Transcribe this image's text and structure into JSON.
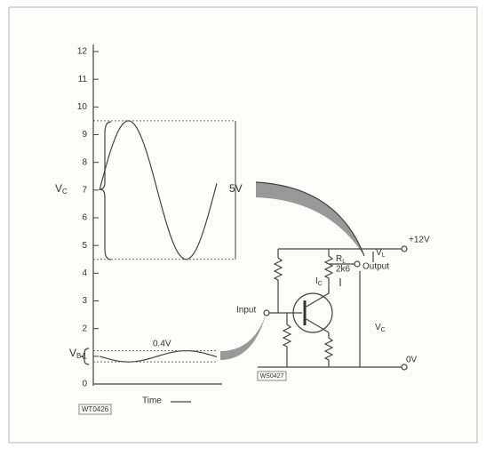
{
  "graph": {
    "ylim": [
      0,
      12
    ],
    "yticks": [
      0,
      1,
      2,
      3,
      4,
      5,
      6,
      7,
      8,
      9,
      10,
      11,
      12
    ],
    "vc_range": [
      4.5,
      9.5
    ],
    "vb_range": [
      0.8,
      1.2
    ],
    "vc_label": {
      "text": "V",
      "sub": "C"
    },
    "vb_label": {
      "text": "V",
      "sub": "B"
    },
    "swing_label": "5V",
    "vb_swing_label": "0.4V",
    "x_label": "Time",
    "figure_id": "WT0426"
  },
  "circuit": {
    "supply": "+12V",
    "ground": "0V",
    "rl": {
      "text": "R",
      "sub": "L"
    },
    "rl_value": "2k6",
    "ic": {
      "text": "I",
      "sub": "C"
    },
    "vl": {
      "text": "V",
      "sub": "L"
    },
    "vc": {
      "text": "V",
      "sub": "C"
    },
    "output": "Output",
    "input": "Input",
    "figure_id": "WS0427"
  }
}
